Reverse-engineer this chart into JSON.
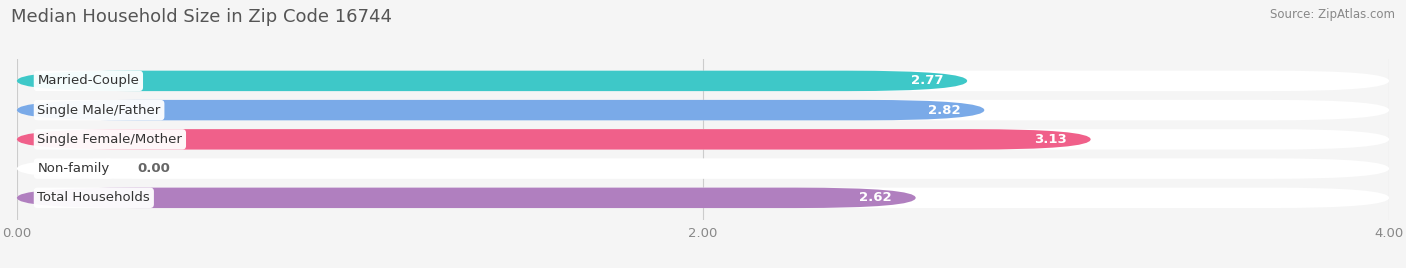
{
  "title": "Median Household Size in Zip Code 16744",
  "source": "Source: ZipAtlas.com",
  "categories": [
    "Married-Couple",
    "Single Male/Father",
    "Single Female/Mother",
    "Non-family",
    "Total Households"
  ],
  "values": [
    2.77,
    2.82,
    3.13,
    0.0,
    2.62
  ],
  "bar_colors": [
    "#3ec8c8",
    "#7aaae8",
    "#f0608a",
    "#f5c999",
    "#b07fbf"
  ],
  "bar_bg_color": "#efefef",
  "xlim": [
    0,
    4.0
  ],
  "xticks": [
    0.0,
    2.0,
    4.0
  ],
  "xtick_labels": [
    "0.00",
    "2.00",
    "4.00"
  ],
  "title_fontsize": 13,
  "label_fontsize": 9.5,
  "value_fontsize": 9.5,
  "bar_height": 0.7,
  "bar_gap": 1.0,
  "background_color": "#f5f5f5"
}
